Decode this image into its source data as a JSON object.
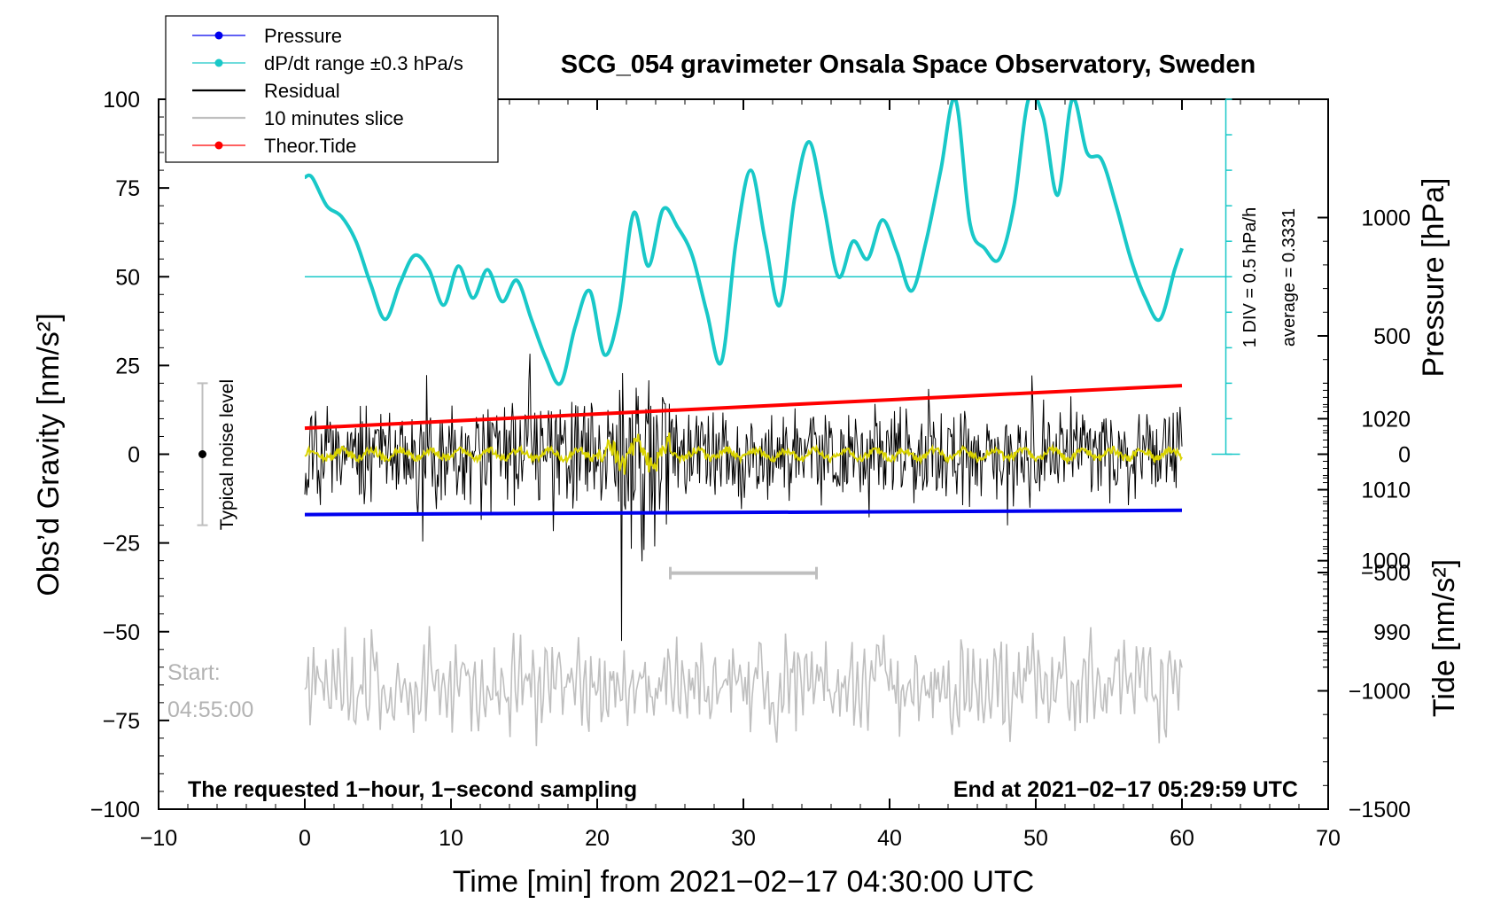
{
  "chart_data": {
    "type": "line",
    "title": "SCG_054 gravimeter Onsala Space Observatory, Sweden",
    "xlabel": "Time [min] from 2021−02−17 04:30:00 UTC",
    "ylabel_left": "Obs’d Gravity [nm/s²]",
    "ylabel_right_top": "Pressure [hPa]",
    "ylabel_right_bottom": "Tide [nm/s²]",
    "xlim": [
      -10,
      70
    ],
    "ylim": [
      -100,
      100
    ],
    "pressure_lim": [
      965,
      1065
    ],
    "tide_lim": [
      -1500,
      1500
    ],
    "x_ticks": [
      "−10",
      "0",
      "10",
      "20",
      "30",
      "40",
      "50",
      "60",
      "70"
    ],
    "y_ticks": [
      "100",
      "75",
      "50",
      "25",
      "0",
      "−25",
      "−50",
      "−75",
      "−100"
    ],
    "pressure_ticks": [
      "1020",
      "1010",
      "1000",
      "990"
    ],
    "tide_ticks": [
      "1000",
      "500",
      "0",
      "−500",
      "−1000",
      "−1500"
    ],
    "legend": [
      {
        "label": "Pressure",
        "color": "#0000ee",
        "marker": true
      },
      {
        "label": "dP/dt range ±0.3 hPa/s",
        "color": "#19c8c8",
        "marker": true
      },
      {
        "label": "Residual",
        "color": "#000000",
        "marker": false
      },
      {
        "label": "10 minutes slice",
        "color": "#bfbfbf",
        "marker": false
      },
      {
        "label": "Theor.Tide",
        "color": "#ff0000",
        "marker": true
      }
    ],
    "annotations": {
      "noise_label": "Typical noise level",
      "start_label": "Start:",
      "start_time": "04:55:00",
      "bottom_left": "The requested 1−hour, 1−second sampling",
      "bottom_right": "End at 2021−02−17 05:29:59 UTC",
      "div_label": "1 DIV = 0.5 hPa/h",
      "average_label": "average = 0.3331"
    },
    "noise_bar": {
      "x": -7,
      "center": 0,
      "half_range": 20
    },
    "slice_range": [
      25,
      35
    ],
    "series": {
      "pressure_hpa": {
        "x": [
          0,
          60
        ],
        "y": [
          1006.5,
          1007.1
        ]
      },
      "tide_nms2": {
        "x": [
          0,
          60
        ],
        "y": [
          110,
          290
        ]
      },
      "dpdt_gravity_units": {
        "x": [
          0,
          0.5,
          1.5,
          2.5,
          3.5,
          4.5,
          5.5,
          6.5,
          7.5,
          8.5,
          9.5,
          10.5,
          11.5,
          12.5,
          13.5,
          14.5,
          15.5,
          16.5,
          17.5,
          18.5,
          19.5,
          20.5,
          21.5,
          22.5,
          23.5,
          24.5,
          25.5,
          26.5,
          27.5,
          28.5,
          29.5,
          30.5,
          31.5,
          32.5,
          33.5,
          34.5,
          35.5,
          36.5,
          37.5,
          38.5,
          39.5,
          40.5,
          41.5,
          42.5,
          43.5,
          44.5,
          45.5,
          46.5,
          47.5,
          48.5,
          49.5,
          50.5,
          51.5,
          52.5,
          53.5,
          54.5,
          55.5,
          56.5,
          57.5,
          58.5,
          59.5,
          60
        ],
        "y": [
          78,
          78,
          70,
          67,
          60,
          48,
          38,
          48,
          56,
          52,
          42,
          53,
          44,
          52,
          43,
          49,
          38,
          27,
          20,
          36,
          46,
          28,
          40,
          68,
          53,
          69,
          64,
          56,
          40,
          26,
          60,
          80,
          60,
          42,
          72,
          88,
          70,
          50,
          60,
          55,
          66,
          57,
          46,
          60,
          80,
          100,
          65,
          58,
          55,
          70,
          100,
          95,
          73,
          100,
          85,
          83,
          70,
          55,
          44,
          38,
          52,
          58
        ]
      }
    }
  }
}
